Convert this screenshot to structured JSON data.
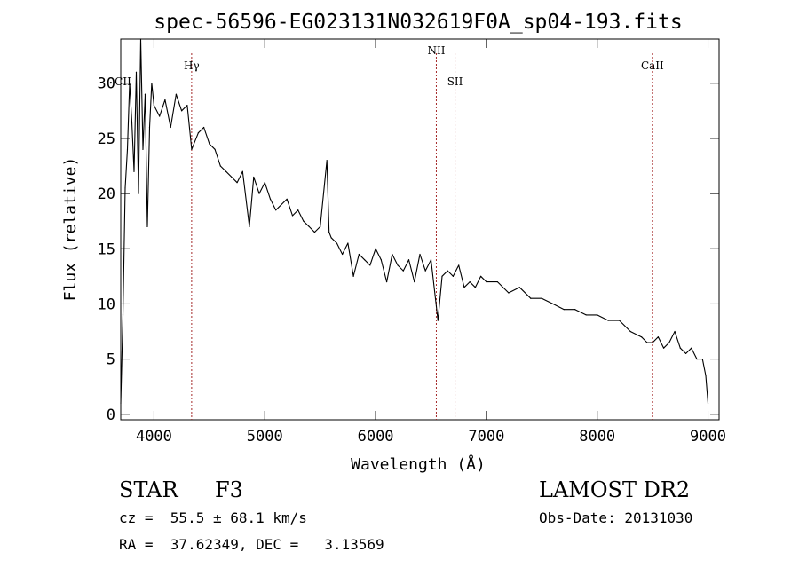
{
  "chart_data": {
    "type": "line",
    "title": "spec-56596-EG023131N032619F0A_sp04-193.fits",
    "xlabel": "Wavelength (Å)",
    "ylabel": "Flux (relative)",
    "xlim": [
      3700,
      9100
    ],
    "ylim": [
      -0.5,
      34
    ],
    "x_ticks": [
      4000,
      5000,
      6000,
      7000,
      8000,
      9000
    ],
    "y_ticks": [
      0,
      5,
      10,
      15,
      20,
      25,
      30
    ],
    "grid": false,
    "legend": "none",
    "line_color": "#000000",
    "marker_color": "#a52a2a",
    "series": [
      {
        "x": [
          3700,
          3720,
          3740,
          3760,
          3780,
          3800,
          3820,
          3840,
          3860,
          3880,
          3900,
          3920,
          3940,
          3960,
          3980,
          4000,
          4050,
          4100,
          4150,
          4200,
          4250,
          4300,
          4340,
          4400,
          4450,
          4500,
          4550,
          4600,
          4650,
          4700,
          4750,
          4800,
          4861,
          4900,
          4950,
          5000,
          5050,
          5100,
          5150,
          5200,
          5250,
          5300,
          5350,
          5400,
          5450,
          5500,
          5560,
          5580,
          5600,
          5650,
          5700,
          5750,
          5800,
          5850,
          5900,
          5950,
          6000,
          6050,
          6100,
          6150,
          6200,
          6250,
          6300,
          6350,
          6400,
          6450,
          6500,
          6563,
          6600,
          6650,
          6700,
          6750,
          6800,
          6850,
          6900,
          6950,
          7000,
          7100,
          7200,
          7300,
          7400,
          7500,
          7600,
          7700,
          7800,
          7900,
          8000,
          8100,
          8200,
          8300,
          8400,
          8450,
          8500,
          8550,
          8600,
          8650,
          8700,
          8750,
          8800,
          8850,
          8900,
          8950,
          8980,
          9000
        ],
        "values": [
          1.0,
          9.0,
          20.5,
          24.0,
          30.0,
          26.5,
          22.0,
          31.0,
          20.0,
          34.0,
          24.0,
          29.0,
          17.0,
          26.0,
          30.0,
          28.0,
          27.0,
          28.5,
          26.0,
          29.0,
          27.5,
          28.0,
          24.0,
          25.5,
          26.0,
          24.5,
          24.0,
          22.5,
          22.0,
          21.5,
          21.0,
          22.0,
          17.0,
          21.5,
          20.0,
          21.0,
          19.5,
          18.5,
          19.0,
          19.5,
          18.0,
          18.5,
          17.5,
          17.0,
          16.5,
          17.0,
          23.0,
          16.5,
          16.0,
          15.5,
          14.5,
          15.5,
          12.5,
          14.5,
          14.0,
          13.5,
          15.0,
          14.0,
          12.0,
          14.5,
          13.5,
          13.0,
          14.0,
          12.0,
          14.5,
          13.0,
          14.0,
          8.5,
          12.5,
          13.0,
          12.5,
          13.5,
          11.5,
          12.0,
          11.5,
          12.5,
          12.0,
          12.0,
          11.0,
          11.5,
          10.5,
          10.5,
          10.0,
          9.5,
          9.5,
          9.0,
          9.0,
          8.5,
          8.5,
          7.5,
          7.0,
          6.5,
          6.5,
          7.0,
          6.0,
          6.5,
          7.5,
          6.0,
          5.5,
          6.0,
          5.0,
          5.0,
          3.5,
          1.0
        ]
      }
    ],
    "lines": [
      {
        "label": "CII",
        "x": 3720
      },
      {
        "label": "Hγ",
        "x": 4340
      },
      {
        "label": "NII",
        "x": 6548
      },
      {
        "label": "SII",
        "x": 6717
      },
      {
        "label": "CaII",
        "x": 8498
      }
    ]
  },
  "info": {
    "object_type": "STAR",
    "subclass": "F3",
    "survey": "LAMOST DR2",
    "redshift_line": "cz =  55.5 ± 68.1 km/s",
    "obs_date_line": "Obs-Date: 20131030",
    "coords_line": "RA =  37.62349, DEC =   3.13569"
  }
}
